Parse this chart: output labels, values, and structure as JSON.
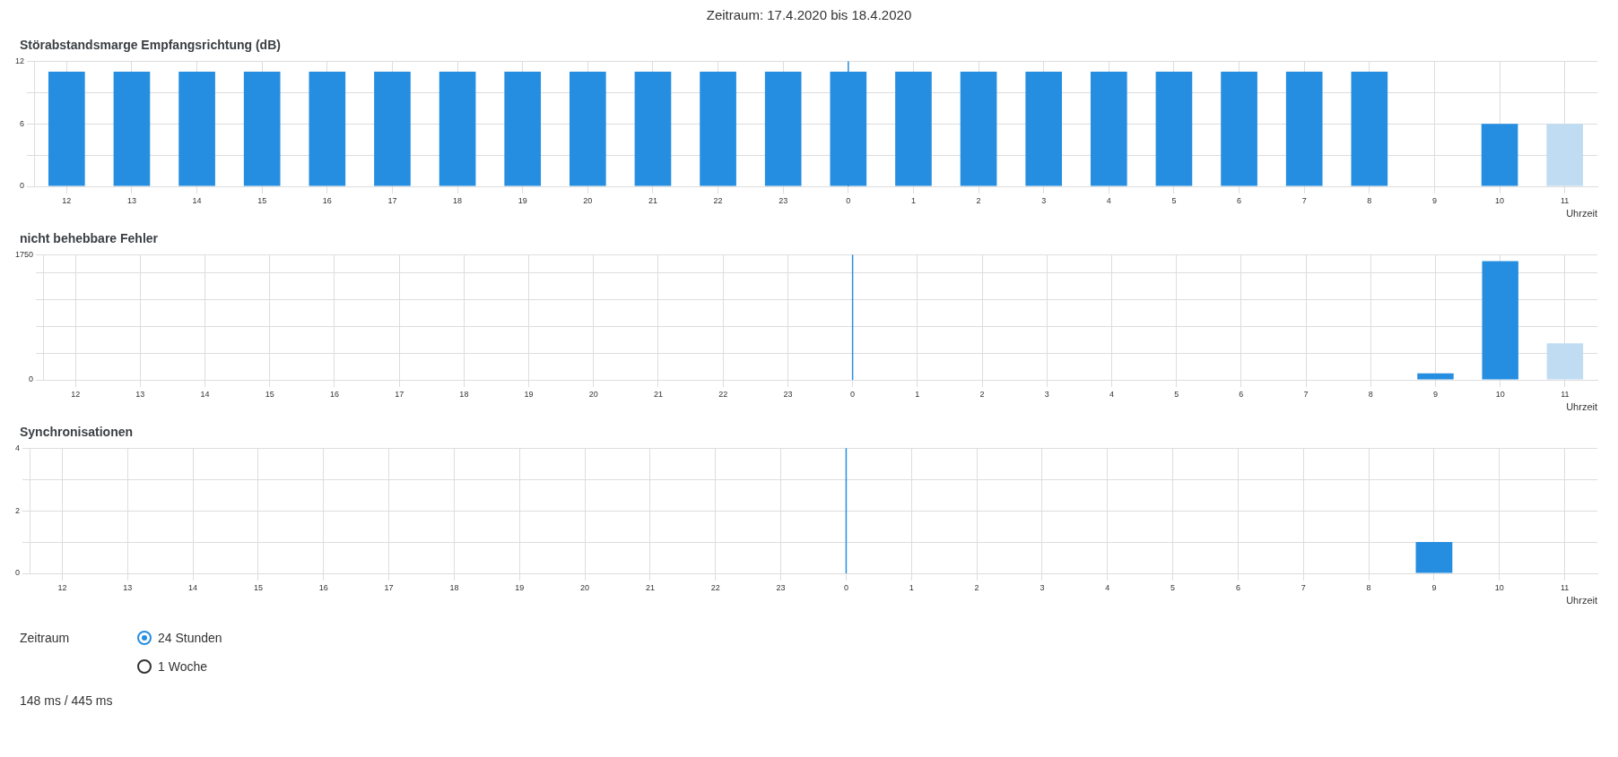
{
  "chart_data": [
    {
      "type": "other",
      "annotations": [
        "Zeitraum: 17.4.2020 bis 18.4.2020"
      ]
    },
    {
      "type": "bar",
      "title": "Störabstandsmarge Empfangsrichtung (dB)",
      "xlabel": "Uhrzeit",
      "categories": [
        "12",
        "13",
        "14",
        "15",
        "16",
        "17",
        "18",
        "19",
        "20",
        "21",
        "22",
        "23",
        "0",
        "1",
        "2",
        "3",
        "4",
        "5",
        "6",
        "7",
        "8",
        "9",
        "10",
        "11"
      ],
      "values": [
        11,
        11,
        11,
        11,
        11,
        11,
        11,
        11,
        11,
        11,
        11,
        11,
        11,
        11,
        11,
        11,
        11,
        11,
        11,
        11,
        11,
        null,
        6,
        6
      ],
      "colors": [
        "#268ee0",
        "#268ee0",
        "#268ee0",
        "#268ee0",
        "#268ee0",
        "#268ee0",
        "#268ee0",
        "#268ee0",
        "#268ee0",
        "#268ee0",
        "#268ee0",
        "#268ee0",
        "#268ee0",
        "#268ee0",
        "#268ee0",
        "#268ee0",
        "#268ee0",
        "#268ee0",
        "#268ee0",
        "#268ee0",
        "#268ee0",
        "#268ee0",
        "#268ee0",
        "#bfdcf3"
      ],
      "ylim": [
        0,
        12
      ],
      "yticks": [
        0,
        {
          "value": 3,
          "label": null
        },
        6,
        {
          "value": 9,
          "label": null
        },
        12
      ],
      "grid": true,
      "ref_lines": [
        {
          "axis": "x",
          "value": "0",
          "color": "#268ee0"
        }
      ]
    },
    {
      "type": "bar",
      "title": "nicht behebbare Fehler",
      "xlabel": "Uhrzeit",
      "categories": [
        "12",
        "13",
        "14",
        "15",
        "16",
        "17",
        "18",
        "19",
        "20",
        "21",
        "22",
        "23",
        "0",
        "1",
        "2",
        "3",
        "4",
        "5",
        "6",
        "7",
        "8",
        "9",
        "10",
        "11"
      ],
      "values": [
        0,
        0,
        0,
        0,
        0,
        0,
        0,
        0,
        0,
        0,
        0,
        0,
        0,
        0,
        0,
        0,
        0,
        0,
        0,
        0,
        0,
        90,
        1660,
        510
      ],
      "colors": [
        "#268ee0",
        "#268ee0",
        "#268ee0",
        "#268ee0",
        "#268ee0",
        "#268ee0",
        "#268ee0",
        "#268ee0",
        "#268ee0",
        "#268ee0",
        "#268ee0",
        "#268ee0",
        "#268ee0",
        "#268ee0",
        "#268ee0",
        "#268ee0",
        "#268ee0",
        "#268ee0",
        "#268ee0",
        "#268ee0",
        "#268ee0",
        "#268ee0",
        "#268ee0",
        "#bfdcf3"
      ],
      "ylim": [
        0,
        1750
      ],
      "yticks": [
        0,
        {
          "value": 375,
          "label": null
        },
        {
          "value": 750,
          "label": null
        },
        {
          "value": 1125,
          "label": null
        },
        {
          "value": 1500,
          "label": null
        },
        1750
      ],
      "grid": true,
      "ref_lines": [
        {
          "axis": "x",
          "value": "0",
          "color": "#268ee0"
        }
      ]
    },
    {
      "type": "bar",
      "title": "Synchronisationen",
      "xlabel": "Uhrzeit",
      "categories": [
        "12",
        "13",
        "14",
        "15",
        "16",
        "17",
        "18",
        "19",
        "20",
        "21",
        "22",
        "23",
        "0",
        "1",
        "2",
        "3",
        "4",
        "5",
        "6",
        "7",
        "8",
        "9",
        "10",
        "11"
      ],
      "values": [
        0,
        0,
        0,
        0,
        0,
        0,
        0,
        0,
        0,
        0,
        0,
        0,
        0,
        0,
        0,
        0,
        0,
        0,
        0,
        0,
        0,
        1,
        0,
        0
      ],
      "colors": [
        "#268ee0",
        "#268ee0",
        "#268ee0",
        "#268ee0",
        "#268ee0",
        "#268ee0",
        "#268ee0",
        "#268ee0",
        "#268ee0",
        "#268ee0",
        "#268ee0",
        "#268ee0",
        "#268ee0",
        "#268ee0",
        "#268ee0",
        "#268ee0",
        "#268ee0",
        "#268ee0",
        "#268ee0",
        "#268ee0",
        "#268ee0",
        "#268ee0",
        "#268ee0",
        "#bfdcf3"
      ],
      "ylim": [
        0,
        4
      ],
      "yticks": [
        0,
        {
          "value": 1,
          "label": null
        },
        2,
        {
          "value": 3,
          "label": null
        },
        4
      ],
      "grid": true,
      "ref_lines": [
        {
          "axis": "x",
          "value": "0",
          "color": "#268ee0"
        }
      ]
    },
    {
      "type": "other",
      "annotations": [
        "Zeitraum",
        "24 Stunden",
        "1 Woche",
        "148 ms / 445 ms"
      ]
    }
  ]
}
